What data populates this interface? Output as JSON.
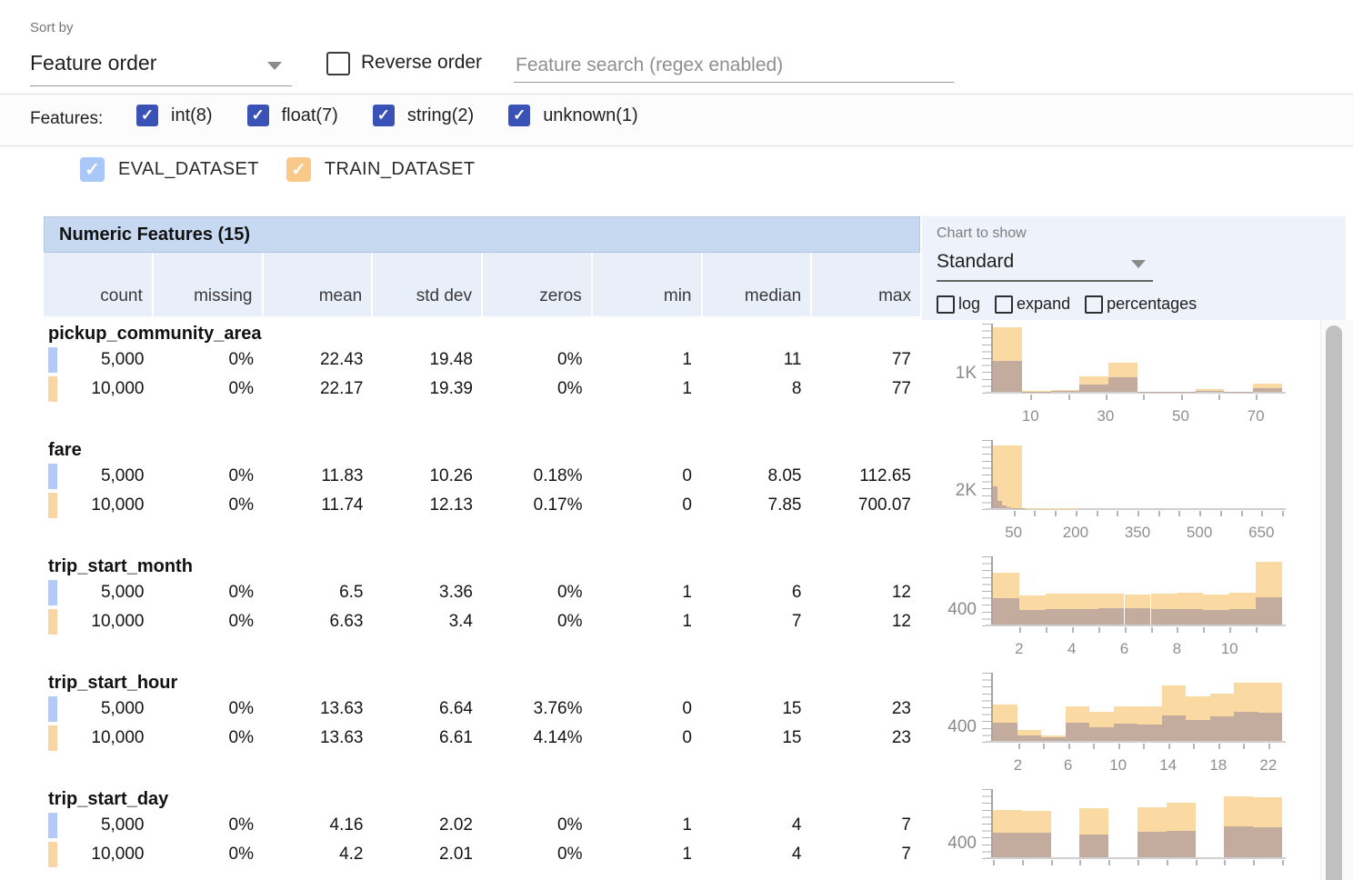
{
  "toolbar": {
    "sort_by_label": "Sort by",
    "sort_by_value": "Feature order",
    "reverse_order_label": "Reverse order",
    "reverse_order_checked": false,
    "search_placeholder": "Feature search (regex enabled)",
    "search_value": ""
  },
  "filters": {
    "label": "Features:",
    "checkbox_color": "#3a51b5",
    "types": [
      {
        "label": "int(8)",
        "checked": true
      },
      {
        "label": "float(7)",
        "checked": true
      },
      {
        "label": "string(2)",
        "checked": true
      },
      {
        "label": "unknown(1)",
        "checked": true
      }
    ]
  },
  "datasets": [
    {
      "id": "eval",
      "label": "EVAL_DATASET",
      "checkbox_color": "#a9c7f7",
      "legend_color": "#b3cbf8",
      "checked": true
    },
    {
      "id": "train",
      "label": "TRAIN_DATASET",
      "checkbox_color": "#f8c988",
      "legend_color": "#f8d5a2",
      "checked": true
    }
  ],
  "table": {
    "title": "Numeric Features (15)",
    "columns": [
      "count",
      "missing",
      "mean",
      "std dev",
      "zeros",
      "min",
      "median",
      "max"
    ],
    "features": [
      {
        "name": "pickup_community_area",
        "rows": [
          {
            "dataset": "eval",
            "values": [
              "5,000",
              "0%",
              "22.43",
              "19.48",
              "0%",
              "1",
              "11",
              "77"
            ]
          },
          {
            "dataset": "train",
            "values": [
              "10,000",
              "0%",
              "22.17",
              "19.39",
              "0%",
              "1",
              "8",
              "77"
            ]
          }
        ]
      },
      {
        "name": "fare",
        "rows": [
          {
            "dataset": "eval",
            "values": [
              "5,000",
              "0%",
              "11.83",
              "10.26",
              "0.18%",
              "0",
              "8.05",
              "112.65"
            ]
          },
          {
            "dataset": "train",
            "values": [
              "10,000",
              "0%",
              "11.74",
              "12.13",
              "0.17%",
              "0",
              "7.85",
              "700.07"
            ]
          }
        ]
      },
      {
        "name": "trip_start_month",
        "rows": [
          {
            "dataset": "eval",
            "values": [
              "5,000",
              "0%",
              "6.5",
              "3.36",
              "0%",
              "1",
              "6",
              "12"
            ]
          },
          {
            "dataset": "train",
            "values": [
              "10,000",
              "0%",
              "6.63",
              "3.4",
              "0%",
              "1",
              "7",
              "12"
            ]
          }
        ]
      },
      {
        "name": "trip_start_hour",
        "rows": [
          {
            "dataset": "eval",
            "values": [
              "5,000",
              "0%",
              "13.63",
              "6.64",
              "3.76%",
              "0",
              "15",
              "23"
            ]
          },
          {
            "dataset": "train",
            "values": [
              "10,000",
              "0%",
              "13.63",
              "6.61",
              "4.14%",
              "0",
              "15",
              "23"
            ]
          }
        ]
      },
      {
        "name": "trip_start_day",
        "rows": [
          {
            "dataset": "eval",
            "values": [
              "5,000",
              "0%",
              "4.16",
              "2.02",
              "0%",
              "1",
              "4",
              "7"
            ]
          },
          {
            "dataset": "train",
            "values": [
              "10,000",
              "0%",
              "4.2",
              "2.01",
              "0%",
              "1",
              "4",
              "7"
            ]
          }
        ]
      }
    ]
  },
  "chart_controls": {
    "label": "Chart to show",
    "selected": "Standard",
    "options": [
      {
        "label": "log",
        "checked": false
      },
      {
        "label": "expand",
        "checked": false
      },
      {
        "label": "percentages",
        "checked": false
      }
    ]
  },
  "chart_data": [
    {
      "feature": "pickup_community_area",
      "type": "bar",
      "x_min": 0,
      "x_max": 77,
      "y_max": 3800,
      "y_axis_label": {
        "text": "1K",
        "value": 1000
      },
      "x_ticks": [
        {
          "v": 10,
          "label": "10"
        },
        {
          "v": 20
        },
        {
          "v": 30,
          "label": "30"
        },
        {
          "v": 40
        },
        {
          "v": 50,
          "label": "50"
        },
        {
          "v": 60
        },
        {
          "v": 70,
          "label": "70"
        }
      ],
      "series": [
        {
          "name": "TRAIN_DATASET",
          "color": "#fbd9a2",
          "bins": [
            [
              0,
              7.7,
              3600
            ],
            [
              7.7,
              15.4,
              30
            ],
            [
              15.4,
              23.1,
              90
            ],
            [
              23.1,
              30.8,
              870
            ],
            [
              30.8,
              38.5,
              1640
            ],
            [
              38.5,
              46.2,
              10
            ],
            [
              46.2,
              53.9,
              20
            ],
            [
              53.9,
              61.6,
              130
            ],
            [
              61.6,
              69.3,
              20
            ],
            [
              69.3,
              77,
              440
            ]
          ]
        },
        {
          "name": "EVAL_DATASET",
          "color": "#c3ac9e",
          "bins": [
            [
              0,
              7.7,
              1700
            ],
            [
              7.7,
              15.4,
              15
            ],
            [
              15.4,
              23.1,
              45
            ],
            [
              23.1,
              30.8,
              430
            ],
            [
              30.8,
              38.5,
              820
            ],
            [
              38.5,
              46.2,
              5
            ],
            [
              46.2,
              53.9,
              10
            ],
            [
              53.9,
              61.6,
              60
            ],
            [
              61.6,
              69.3,
              10
            ],
            [
              69.3,
              77,
              200
            ]
          ]
        }
      ]
    },
    {
      "feature": "fare",
      "type": "bar",
      "x_min": 0,
      "x_max": 700,
      "y_max": 8000,
      "y_axis_label": {
        "text": "2K",
        "value": 2000
      },
      "x_ticks": [
        {
          "v": 50,
          "label": "50"
        },
        {
          "v": 100
        },
        {
          "v": 150
        },
        {
          "v": 200,
          "label": "200"
        },
        {
          "v": 250
        },
        {
          "v": 300
        },
        {
          "v": 350,
          "label": "350"
        },
        {
          "v": 400
        },
        {
          "v": 450
        },
        {
          "v": 500,
          "label": "500"
        },
        {
          "v": 550
        },
        {
          "v": 600
        },
        {
          "v": 650,
          "label": "650"
        },
        {
          "v": 700
        }
      ],
      "series": [
        {
          "name": "TRAIN_DATASET",
          "color": "#fbd9a2",
          "bins": [
            [
              0,
              70,
              7400
            ],
            [
              70,
              140,
              40
            ],
            [
              140,
              210,
              6
            ],
            [
              210,
              280,
              3
            ],
            [
              280,
              350,
              2
            ],
            [
              350,
              420,
              2
            ],
            [
              420,
              490,
              1
            ],
            [
              490,
              560,
              1
            ],
            [
              560,
              630,
              1
            ],
            [
              630,
              700,
              2
            ]
          ]
        },
        {
          "name": "EVAL_DATASET",
          "color": "#c3ac9e",
          "bins": [
            [
              0,
              11.3,
              2600
            ],
            [
              11.3,
              22.5,
              900
            ],
            [
              22.5,
              33.8,
              350
            ],
            [
              33.8,
              45.1,
              120
            ],
            [
              45.1,
              56.3,
              40
            ],
            [
              56.3,
              67.6,
              15
            ],
            [
              67.6,
              78.9,
              8
            ],
            [
              78.9,
              90.1,
              4
            ],
            [
              90.1,
              101.4,
              2
            ],
            [
              101.4,
              112.7,
              1
            ]
          ]
        }
      ]
    },
    {
      "feature": "trip_start_month",
      "type": "bar",
      "x_min": 1,
      "x_max": 12,
      "y_max": 1900,
      "y_axis_label": {
        "text": "400",
        "value": 400
      },
      "x_ticks": [
        {
          "v": 2,
          "label": "2"
        },
        {
          "v": 3
        },
        {
          "v": 4,
          "label": "4"
        },
        {
          "v": 5
        },
        {
          "v": 6,
          "label": "6"
        },
        {
          "v": 7
        },
        {
          "v": 8,
          "label": "8"
        },
        {
          "v": 9
        },
        {
          "v": 10,
          "label": "10"
        },
        {
          "v": 11
        }
      ],
      "series": [
        {
          "name": "TRAIN_DATASET",
          "color": "#fbd9a2",
          "bins": [
            [
              1,
              2,
              1450
            ],
            [
              2,
              3,
              820
            ],
            [
              3,
              4,
              850
            ],
            [
              4,
              5,
              860
            ],
            [
              5,
              6,
              850
            ],
            [
              6,
              7,
              840
            ],
            [
              7,
              8,
              860
            ],
            [
              8,
              9,
              900
            ],
            [
              9,
              10,
              830
            ],
            [
              10,
              11,
              900
            ],
            [
              11,
              12,
              1750
            ]
          ]
        },
        {
          "name": "EVAL_DATASET",
          "color": "#c3ac9e",
          "bins": [
            [
              1,
              2,
              730
            ],
            [
              2,
              3,
              410
            ],
            [
              3,
              4,
              430
            ],
            [
              4,
              5,
              440
            ],
            [
              5,
              6,
              450
            ],
            [
              6,
              7,
              450
            ],
            [
              7,
              8,
              430
            ],
            [
              8,
              9,
              420
            ],
            [
              9,
              10,
              410
            ],
            [
              10,
              11,
              430
            ],
            [
              11,
              12,
              760
            ]
          ]
        }
      ]
    },
    {
      "feature": "trip_start_hour",
      "type": "bar",
      "x_min": 0,
      "x_max": 23.1,
      "y_max": 1950,
      "y_axis_label": {
        "text": "400",
        "value": 400
      },
      "x_ticks": [
        {
          "v": 2,
          "label": "2"
        },
        {
          "v": 4
        },
        {
          "v": 6,
          "label": "6"
        },
        {
          "v": 8
        },
        {
          "v": 10,
          "label": "10"
        },
        {
          "v": 12
        },
        {
          "v": 14,
          "label": "14"
        },
        {
          "v": 16
        },
        {
          "v": 18,
          "label": "18"
        },
        {
          "v": 20
        },
        {
          "v": 22,
          "label": "22"
        }
      ],
      "series": [
        {
          "name": "TRAIN_DATASET",
          "color": "#fbd9a2",
          "bins": [
            [
              0,
              1.93,
              1050
            ],
            [
              1.93,
              3.85,
              320
            ],
            [
              3.85,
              5.78,
              170
            ],
            [
              5.78,
              7.7,
              1000
            ],
            [
              7.7,
              9.63,
              830
            ],
            [
              9.63,
              11.55,
              980
            ],
            [
              11.55,
              13.48,
              1000
            ],
            [
              13.48,
              15.4,
              1580
            ],
            [
              15.4,
              17.33,
              1270
            ],
            [
              17.33,
              19.25,
              1350
            ],
            [
              19.25,
              21.18,
              1670
            ],
            [
              21.18,
              23.1,
              1670
            ]
          ]
        },
        {
          "name": "EVAL_DATASET",
          "color": "#c3ac9e",
          "bins": [
            [
              0,
              1.93,
              530
            ],
            [
              1.93,
              3.85,
              150
            ],
            [
              3.85,
              5.78,
              100
            ],
            [
              5.78,
              7.7,
              510
            ],
            [
              7.7,
              9.63,
              400
            ],
            [
              9.63,
              11.55,
              490
            ],
            [
              11.55,
              13.48,
              480
            ],
            [
              13.48,
              15.4,
              720
            ],
            [
              15.4,
              17.33,
              600
            ],
            [
              17.33,
              19.25,
              700
            ],
            [
              19.25,
              21.18,
              840
            ],
            [
              21.18,
              23.1,
              810
            ]
          ]
        }
      ]
    },
    {
      "feature": "trip_start_day",
      "type": "bar",
      "x_min": 1,
      "x_max": 7,
      "y_max": 1950,
      "y_axis_label": {
        "text": "400",
        "value": 400
      },
      "x_ticks": [
        {
          "v": 1
        },
        {
          "v": 1.6
        },
        {
          "v": 2.2
        },
        {
          "v": 2.8
        },
        {
          "v": 3.4
        },
        {
          "v": 4
        },
        {
          "v": 4.6
        },
        {
          "v": 5.2
        },
        {
          "v": 5.8
        },
        {
          "v": 6.4
        },
        {
          "v": 7
        }
      ],
      "series": [
        {
          "name": "TRAIN_DATASET",
          "color": "#fbd9a2",
          "bins": [
            [
              1,
              1.6,
              1350
            ],
            [
              1.6,
              2.2,
              1340
            ],
            [
              2.2,
              2.8,
              0
            ],
            [
              2.8,
              3.4,
              1400
            ],
            [
              3.4,
              4,
              0
            ],
            [
              4,
              4.6,
              1440
            ],
            [
              4.6,
              5.2,
              1550
            ],
            [
              5.2,
              5.8,
              0
            ],
            [
              5.8,
              6.4,
              1750
            ],
            [
              6.4,
              7,
              1730
            ]
          ]
        },
        {
          "name": "EVAL_DATASET",
          "color": "#c3ac9e",
          "bins": [
            [
              1,
              1.6,
              710
            ],
            [
              1.6,
              2.2,
              700
            ],
            [
              2.2,
              2.8,
              0
            ],
            [
              2.8,
              3.4,
              640
            ],
            [
              3.4,
              4,
              0
            ],
            [
              4,
              4.6,
              740
            ],
            [
              4.6,
              5.2,
              760
            ],
            [
              5.2,
              5.8,
              0
            ],
            [
              5.8,
              6.4,
              880
            ],
            [
              6.4,
              7,
              860
            ]
          ]
        }
      ]
    }
  ]
}
